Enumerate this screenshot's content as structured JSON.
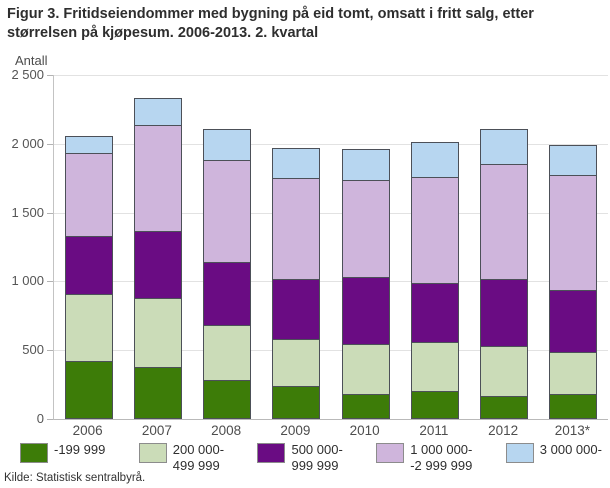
{
  "figure": {
    "title": "Figur 3. Fritidseiendommer med bygning på eid tomt, omsatt i fritt salg, etter størrelsen på kjøpesum. 2006-2013. 2. kvartal",
    "y_axis_label": "Antall",
    "source": "Kilde: Statistisk sentralbyrå."
  },
  "chart_data": {
    "type": "bar",
    "stacked": true,
    "title": "Figur 3. Fritidseiendommer med bygning på eid tomt, omsatt i fritt salg, etter størrelsen på kjøpesum. 2006-2013. 2. kvartal",
    "xlabel": "",
    "ylabel": "Antall",
    "categories": [
      "2006",
      "2007",
      "2008",
      "2009",
      "2010",
      "2011",
      "2012",
      "2013*"
    ],
    "series": [
      {
        "name": "-199 999",
        "legend_label": "-199 999",
        "color": "#3d7c08",
        "values": [
          425,
          375,
          285,
          240,
          180,
          205,
          170,
          185
        ]
      },
      {
        "name": "200 000-499 999",
        "legend_label": "200 000-\n499 999",
        "color": "#cbdcb8",
        "values": [
          485,
          505,
          400,
          340,
          365,
          355,
          360,
          305
        ]
      },
      {
        "name": "500 000-999 999",
        "legend_label": "500 000-\n999 999",
        "color": "#6a0c83",
        "values": [
          420,
          485,
          455,
          440,
          485,
          425,
          490,
          450
        ]
      },
      {
        "name": "1 000 000--2 999 999",
        "legend_label": "1 000 000-\n-2 999 999",
        "color": "#cfb5dc",
        "values": [
          600,
          770,
          745,
          735,
          710,
          775,
          835,
          835
        ]
      },
      {
        "name": "3 000 000-",
        "legend_label": "3 000 000-",
        "color": "#b7d6f0",
        "values": [
          130,
          200,
          225,
          215,
          225,
          250,
          255,
          215
        ]
      }
    ],
    "totals": [
      2060,
      2335,
      2110,
      1970,
      1965,
      2010,
      2110,
      1990
    ],
    "ylim": [
      0,
      2500
    ],
    "y_ticks": [
      0,
      500,
      1000,
      1500,
      2000,
      2500
    ],
    "y_tick_labels": [
      "0",
      "500",
      "1 000",
      "1 500",
      "2 000",
      "2 500"
    ],
    "grid": true,
    "legend_position": "bottom",
    "bar_border_color": "#4c5058"
  }
}
